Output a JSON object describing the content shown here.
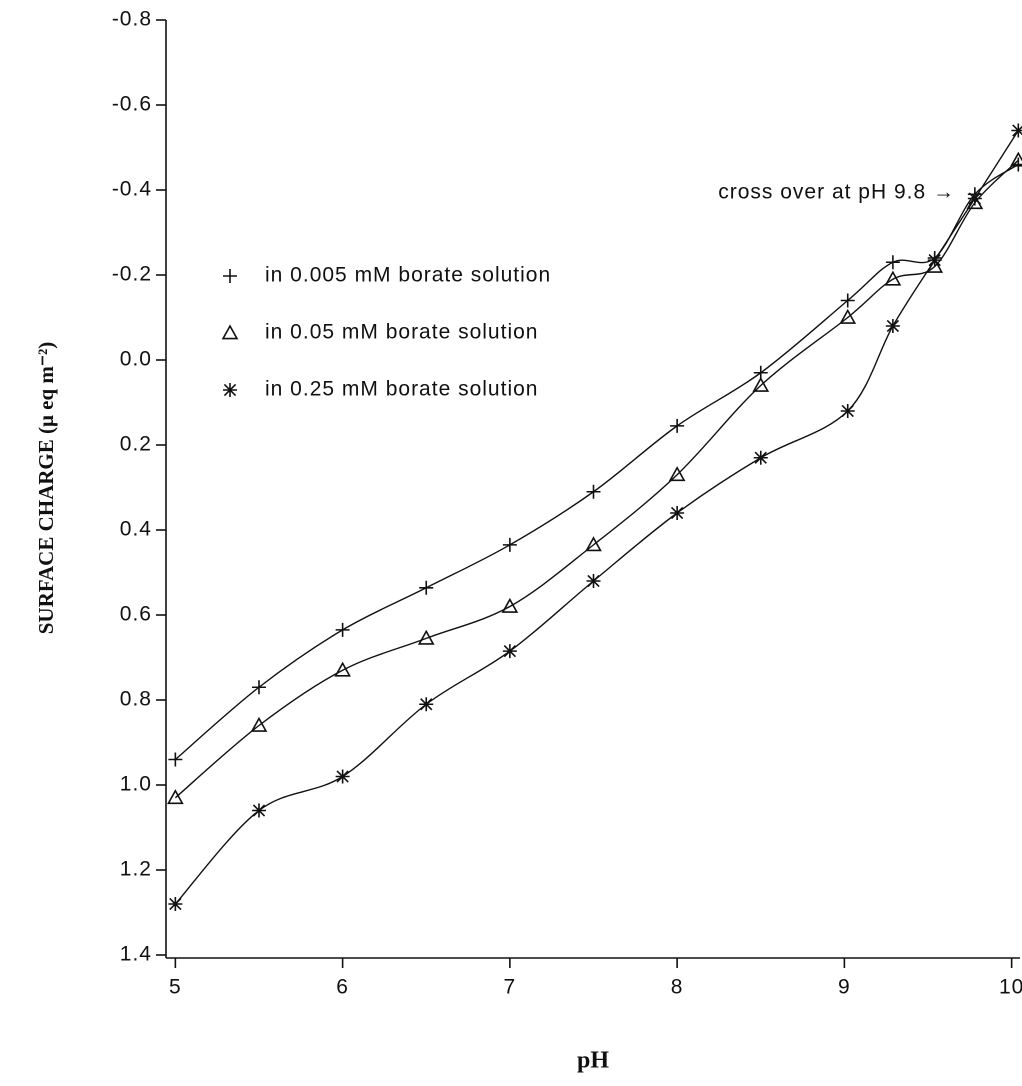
{
  "chart_data": {
    "type": "line",
    "y_label": "SURFACE CHARGE (μ eq m⁻²)",
    "x_label": "pH",
    "annotation": "cross over at pH 9.8 →",
    "x": [
      5,
      5.5,
      6,
      6.5,
      7,
      7.5,
      8,
      8.5,
      9.02,
      9.29,
      9.54,
      9.78,
      10.04
    ],
    "series": [
      {
        "name": "in 0.005 mM borate solution",
        "marker": "plus",
        "color": "#111111",
        "values": [
          0.94,
          0.77,
          0.635,
          0.536,
          0.435,
          0.31,
          0.155,
          0.03,
          -0.14,
          -0.23,
          -0.24,
          -0.39,
          -0.46
        ]
      },
      {
        "name": "in 0.05 mM borate solution",
        "marker": "triangle",
        "color": "#111111",
        "values": [
          1.03,
          0.86,
          0.73,
          0.655,
          0.58,
          0.435,
          0.27,
          0.06,
          -0.1,
          -0.19,
          -0.22,
          -0.37,
          -0.47
        ]
      },
      {
        "name": "in 0.25 mM borate solution",
        "marker": "star",
        "color": "#111111",
        "values": [
          1.28,
          1.06,
          0.98,
          0.81,
          0.685,
          0.52,
          0.36,
          0.23,
          0.12,
          -0.08,
          -0.235,
          -0.38,
          -0.54
        ]
      }
    ],
    "xlim": [
      4.95,
      10.05
    ],
    "xticks": [
      5,
      6,
      7,
      8,
      9,
      10
    ],
    "ylim": [
      1.4,
      -0.8
    ],
    "yticks": [
      -0.8,
      -0.6,
      -0.4,
      -0.2,
      {
        "value": 0,
        "label": "0.0"
      },
      0.2,
      0.4,
      0.6,
      0.8,
      {
        "value": 1,
        "label": "1.0"
      },
      1.2,
      1.4
    ]
  }
}
